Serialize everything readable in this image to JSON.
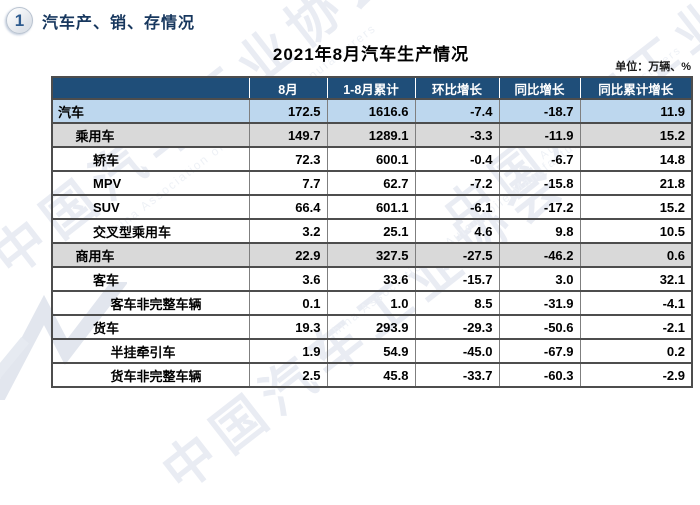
{
  "page": {
    "section_number": "1",
    "section_title": "汽车产、销、存情况",
    "table_title": "2021年8月汽车生产情况",
    "unit_label": "单位：万辆、%"
  },
  "watermark": {
    "cn_text": "中国汽车工业协会",
    "en_text": "China Association of Automobile Manufacturers",
    "en_text_short": "Automobile Manufacturers"
  },
  "colors": {
    "header_bg": "#1F4E79",
    "header_text": "#FFFFFF",
    "row_highlight_blue": "#BDD7EE",
    "row_highlight_gray": "#D9D9D9",
    "section_title_navy": "#17375E",
    "border_dark": "#4d4d4d",
    "border_light": "#7f7f7f"
  },
  "chart_data": {
    "type": "table",
    "title": "2021年8月汽车生产情况",
    "unit": "万辆、%",
    "columns": [
      "",
      "8月",
      "1-8月累计",
      "环比增长",
      "同比增长",
      "同比累计增长"
    ],
    "rows": [
      {
        "label": "汽车",
        "indent": 0,
        "style": "blue",
        "values": [
          "172.5",
          "1616.6",
          "-7.4",
          "-18.7",
          "11.9"
        ]
      },
      {
        "label": "乘用车",
        "indent": 1,
        "style": "gray",
        "values": [
          "149.7",
          "1289.1",
          "-3.3",
          "-11.9",
          "15.2"
        ]
      },
      {
        "label": "轿车",
        "indent": 2,
        "style": "white",
        "values": [
          "72.3",
          "600.1",
          "-0.4",
          "-6.7",
          "14.8"
        ]
      },
      {
        "label": "MPV",
        "indent": 2,
        "style": "white",
        "values": [
          "7.7",
          "62.7",
          "-7.2",
          "-15.8",
          "21.8"
        ]
      },
      {
        "label": "SUV",
        "indent": 2,
        "style": "white",
        "values": [
          "66.4",
          "601.1",
          "-6.1",
          "-17.2",
          "15.2"
        ]
      },
      {
        "label": "交叉型乘用车",
        "indent": 2,
        "style": "white",
        "values": [
          "3.2",
          "25.1",
          "4.6",
          "9.8",
          "10.5"
        ]
      },
      {
        "label": "商用车",
        "indent": 1,
        "style": "gray",
        "values": [
          "22.9",
          "327.5",
          "-27.5",
          "-46.2",
          "0.6"
        ]
      },
      {
        "label": "客车",
        "indent": 2,
        "style": "white",
        "values": [
          "3.6",
          "33.6",
          "-15.7",
          "3.0",
          "32.1"
        ]
      },
      {
        "label": "客车非完整车辆",
        "indent": 3,
        "style": "white",
        "values": [
          "0.1",
          "1.0",
          "8.5",
          "-31.9",
          "-4.1"
        ]
      },
      {
        "label": "货车",
        "indent": 2,
        "style": "white",
        "values": [
          "19.3",
          "293.9",
          "-29.3",
          "-50.6",
          "-2.1"
        ]
      },
      {
        "label": "半挂牵引车",
        "indent": 3,
        "style": "white",
        "values": [
          "1.9",
          "54.9",
          "-45.0",
          "-67.9",
          "0.2"
        ]
      },
      {
        "label": "货车非完整车辆",
        "indent": 3,
        "style": "white",
        "values": [
          "2.5",
          "45.8",
          "-33.7",
          "-60.3",
          "-2.9"
        ]
      }
    ]
  }
}
